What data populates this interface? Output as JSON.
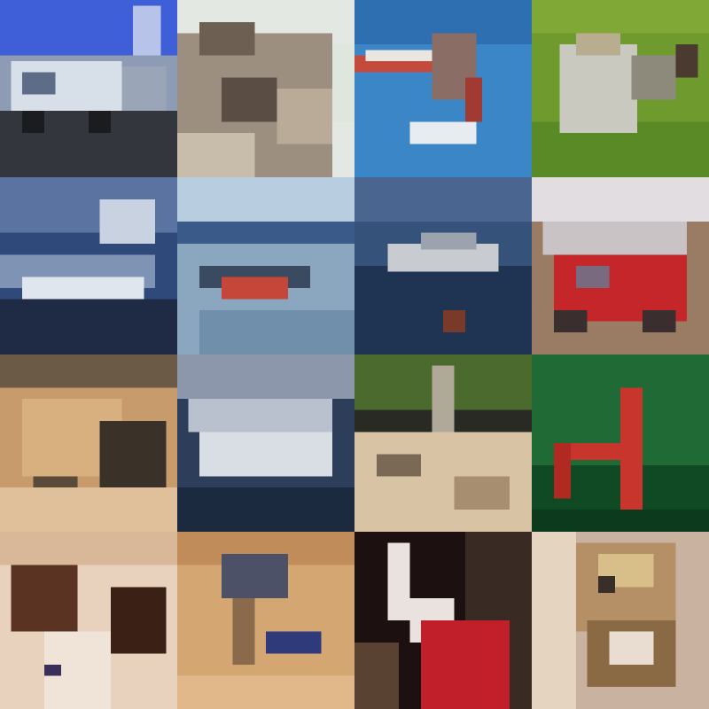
{
  "grid": {
    "rows": 4,
    "columns": 4
  },
  "tiles": [
    {
      "subject": "truck",
      "palette": [
        "#3f5fd8",
        "#c9d3df",
        "#3a3f4a",
        "#2c2f33"
      ]
    },
    {
      "subject": "rocky-terrain",
      "palette": [
        "#e4e8e2",
        "#7a6a5a",
        "#b9ab98",
        "#4b4038"
      ]
    },
    {
      "subject": "airplane",
      "palette": [
        "#3a86c6",
        "#2d6fb0",
        "#c44b3c",
        "#e9e6e2"
      ]
    },
    {
      "subject": "bird-on-grass",
      "palette": [
        "#6f9a2e",
        "#4f7a1f",
        "#c9c9c0",
        "#8d8a7c"
      ]
    },
    {
      "subject": "ship-at-sea",
      "palette": [
        "#2f4a7a",
        "#1f2b44",
        "#dfe6ee",
        "#7f93b4"
      ]
    },
    {
      "subject": "boat",
      "palette": [
        "#b9cde0",
        "#3a5b8a",
        "#c6463a",
        "#8aa7bf"
      ]
    },
    {
      "subject": "aircraft-over-water",
      "palette": [
        "#34527a",
        "#1f3453",
        "#c8ccd0",
        "#7a8fa8"
      ]
    },
    {
      "subject": "red-vehicle",
      "palette": [
        "#e2dde0",
        "#c5262a",
        "#5a4a4a",
        "#9a7c64"
      ]
    },
    {
      "subject": "animal-on-ground",
      "palette": [
        "#c79b6b",
        "#6b5a46",
        "#3a3128",
        "#e0c09a"
      ]
    },
    {
      "subject": "white-aircraft",
      "palette": [
        "#2c3e5a",
        "#d9dde4",
        "#8c97ab",
        "#1c2a3f"
      ]
    },
    {
      "subject": "scene-with-ground",
      "palette": [
        "#2a2a24",
        "#d8c4a4",
        "#7a6a55",
        "#4b6a2e"
      ]
    },
    {
      "subject": "red-object-on-green",
      "palette": [
        "#1f6a35",
        "#104a24",
        "#c8352c",
        "#0c3a1c"
      ]
    },
    {
      "subject": "dog",
      "palette": [
        "#e8d2bd",
        "#5a3322",
        "#3a2015",
        "#c9a48a"
      ]
    },
    {
      "subject": "object-on-table",
      "palette": [
        "#d4a772",
        "#4c5168",
        "#8a6a4a",
        "#2f3a7a"
      ]
    },
    {
      "subject": "red-and-white-object",
      "palette": [
        "#1c1010",
        "#c11f2a",
        "#e9e2de",
        "#5a4232"
      ]
    },
    {
      "subject": "cat",
      "palette": [
        "#c9b2a0",
        "#8a6a45",
        "#e4d4c0",
        "#3a2e28"
      ]
    }
  ]
}
